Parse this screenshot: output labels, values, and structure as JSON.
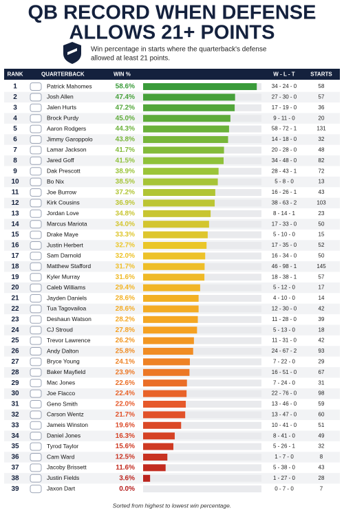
{
  "chart_data": {
    "type": "bar",
    "orientation": "horizontal",
    "title": [
      "QB RECORD WHEN DEFENSE",
      "ALLOWS 21+ POINTS"
    ],
    "subtitle": [
      "Win percentage in starts where the quarterback's defense",
      "allowed at least 21 points."
    ],
    "columns": [
      "RANK",
      "QUARTERBACK",
      "WIN %",
      "W - L - T",
      "STARTS"
    ],
    "ranks": [
      1,
      2,
      3,
      4,
      5,
      6,
      7,
      8,
      9,
      10,
      11,
      12,
      13,
      14,
      15,
      16,
      17,
      18,
      19,
      20,
      21,
      22,
      23,
      24,
      25,
      26,
      27,
      28,
      29,
      30,
      31,
      32,
      33,
      34,
      35,
      36,
      37,
      38,
      39
    ],
    "categories": [
      "Patrick Mahomes",
      "Josh Allen",
      "Jalen Hurts",
      "Brock Purdy",
      "Aaron Rodgers",
      "Jimmy Garoppolo",
      "Lamar Jackson",
      "Jared Goff",
      "Dak Prescott",
      "Bo Nix",
      "Joe Burrow",
      "Kirk Cousins",
      "Jordan Love",
      "Marcus Mariota",
      "Drake Maye",
      "Justin Herbert",
      "Sam Darnold",
      "Matthew Stafford",
      "Kyler Murray",
      "Caleb Williams",
      "Jayden Daniels",
      "Tua Tagovailoa",
      "Deshaun Watson",
      "CJ Stroud",
      "Trevor Lawrence",
      "Andy Dalton",
      "Bryce Young",
      "Baker Mayfield",
      "Mac Jones",
      "Joe Flacco",
      "Geno Smith",
      "Carson Wentz",
      "Jameis Winston",
      "Daniel Jones",
      "Tyrod Taylor",
      "Cam Ward",
      "Jacoby Brissett",
      "Justin Fields",
      "Jaxon Dart"
    ],
    "values": [
      58.6,
      47.4,
      47.2,
      45.0,
      44.3,
      43.8,
      41.7,
      41.5,
      38.9,
      38.5,
      37.2,
      36.9,
      34.8,
      34.0,
      33.3,
      32.7,
      32.0,
      31.7,
      31.6,
      29.4,
      28.6,
      28.6,
      28.2,
      27.8,
      26.2,
      25.8,
      24.1,
      23.9,
      22.6,
      22.4,
      22.0,
      21.7,
      19.6,
      16.3,
      15.6,
      12.5,
      11.6,
      3.6,
      0.0
    ],
    "value_labels": [
      "58.6%",
      "47.4%",
      "47.2%",
      "45.0%",
      "44.3%",
      "43.8%",
      "41.7%",
      "41.5%",
      "38.9%",
      "38.5%",
      "37.2%",
      "36.9%",
      "34.8%",
      "34.0%",
      "33.3%",
      "32.7%",
      "32.0%",
      "31.7%",
      "31.6%",
      "29.4%",
      "28.6%",
      "28.6%",
      "28.2%",
      "27.8%",
      "26.2%",
      "25.8%",
      "24.1%",
      "23.9%",
      "22.6%",
      "22.4%",
      "22.0%",
      "21.7%",
      "19.6%",
      "16.3%",
      "15.6%",
      "12.5%",
      "11.6%",
      "3.6%",
      "0.0%"
    ],
    "records": [
      "34 - 24 - 0",
      "27 - 30 - 0",
      "17 - 19 - 0",
      "9 - 11 - 0",
      "58 - 72 - 1",
      "14 - 18 - 0",
      "20 - 28 - 0",
      "34 - 48 - 0",
      "28 - 43 - 1",
      "5 - 8 - 0",
      "16 - 26 - 1",
      "38 - 63 - 2",
      "8 - 14 - 1",
      "17 - 33 - 0",
      "5 - 10 - 0",
      "17 - 35 - 0",
      "16 - 34 - 0",
      "46 - 98 - 1",
      "18 - 38 - 1",
      "5 - 12 - 0",
      "4 - 10 - 0",
      "12 - 30 - 0",
      "11 - 28 - 0",
      "5 - 13 - 0",
      "11 - 31 - 0",
      "24 - 67 - 2",
      "7 - 22 - 0",
      "16 - 51 - 0",
      "7 - 24 - 0",
      "22 - 76 - 0",
      "13 - 46 - 0",
      "13 - 47 - 0",
      "10 - 41 - 0",
      "8 - 41 - 0",
      "5 - 26 - 1",
      "1 - 7 - 0",
      "5 - 38 - 0",
      "1 - 27 - 0",
      "0 - 7 - 0"
    ],
    "starts": [
      58,
      57,
      36,
      20,
      131,
      32,
      48,
      82,
      72,
      13,
      43,
      103,
      23,
      50,
      15,
      52,
      50,
      145,
      57,
      17,
      14,
      42,
      39,
      18,
      42,
      93,
      29,
      67,
      31,
      98,
      59,
      60,
      51,
      49,
      32,
      8,
      43,
      28,
      7
    ],
    "xlim": [
      0,
      61
    ],
    "colors": [
      "#3a9b3a",
      "#96c43a",
      "#ecc62a",
      "#f5a322",
      "#e5552a",
      "#b51c1c"
    ],
    "footer": "Sorted from highest to lowest win percentage."
  }
}
